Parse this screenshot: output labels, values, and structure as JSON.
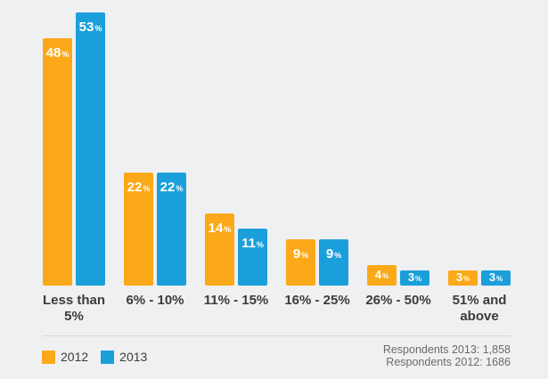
{
  "chart_data": {
    "type": "bar",
    "title": "",
    "categories": [
      "Less than 5%",
      "6% - 10%",
      "11% - 15%",
      "16% - 25%",
      "26% - 50%",
      "51% and above"
    ],
    "category_lines": [
      [
        "Less than",
        "5%"
      ],
      [
        "6% - 10%"
      ],
      [
        "11% - 15%"
      ],
      [
        "16% - 25%"
      ],
      [
        "26% - 50%"
      ],
      [
        "51% and",
        "above"
      ]
    ],
    "series": [
      {
        "name": "2012",
        "color": "#FBA919",
        "values": [
          48,
          22,
          14,
          9,
          4,
          3
        ]
      },
      {
        "name": "2013",
        "color": "#1B9FDB",
        "values": [
          53,
          22,
          11,
          9,
          3,
          3
        ]
      }
    ],
    "value_suffix": "%",
    "ylim": [
      0,
      53
    ],
    "grid": false,
    "legend_position": "bottom-left"
  },
  "footer": {
    "respondents_2013": "Respondents 2013: 1,858",
    "respondents_2012": "Respondents 2012: 1686"
  }
}
